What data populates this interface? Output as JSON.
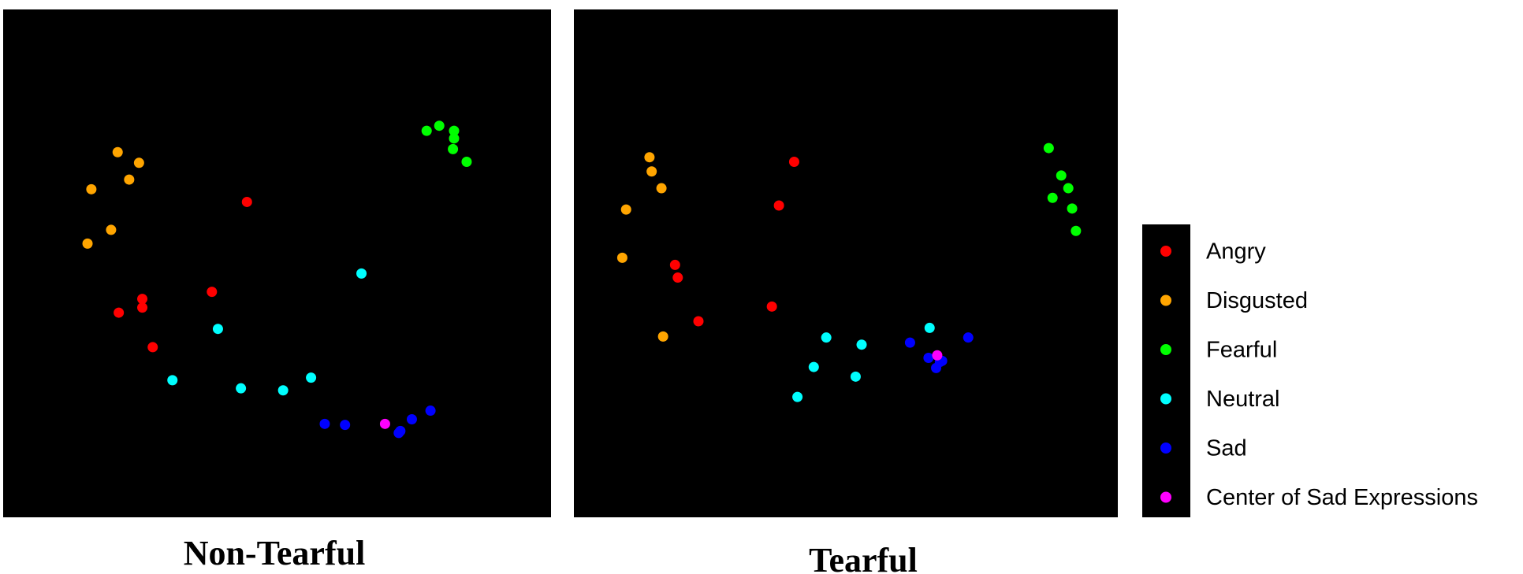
{
  "chart_data": [
    {
      "type": "scatter",
      "title": "Non-Tearful",
      "xlim": [
        0,
        100
      ],
      "ylim": [
        0,
        100
      ],
      "series": [
        {
          "name": "Angry",
          "color": "#ff0000",
          "x": [
            44.5,
            38.1,
            25.4,
            25.4,
            21.1,
            27.3
          ],
          "y": [
            62.1,
            44.4,
            43.0,
            41.3,
            40.3,
            33.5
          ]
        },
        {
          "name": "Disgusted",
          "color": "#ffa500",
          "x": [
            20.9,
            24.8,
            16.1,
            23.0,
            19.7,
            15.4
          ],
          "y": [
            71.9,
            69.8,
            64.6,
            66.5,
            56.6,
            53.9
          ]
        },
        {
          "name": "Fearful",
          "color": "#00ff00",
          "x": [
            77.3,
            79.6,
            82.3,
            82.3,
            82.1,
            84.6
          ],
          "y": [
            76.1,
            77.1,
            76.1,
            74.6,
            72.5,
            70.0
          ]
        },
        {
          "name": "Neutral",
          "color": "#00ffff",
          "x": [
            65.4,
            39.2,
            30.9,
            43.4,
            51.1,
            56.2
          ],
          "y": [
            48.0,
            37.1,
            27.0,
            25.4,
            25.0,
            27.5
          ]
        },
        {
          "name": "Sad",
          "color": "#0000ff",
          "x": [
            58.7,
            62.4,
            72.2,
            72.5,
            74.6,
            78.0
          ],
          "y": [
            18.4,
            18.2,
            16.6,
            17.0,
            19.3,
            21.0
          ]
        },
        {
          "name": "Center of Sad Expressions",
          "color": "#ff00ff",
          "x": [
            69.7
          ],
          "y": [
            18.4
          ]
        }
      ]
    },
    {
      "type": "scatter",
      "title": "Tearful",
      "xlim": [
        0,
        100
      ],
      "ylim": [
        0,
        100
      ],
      "legend": "right",
      "series": [
        {
          "name": "Angry",
          "color": "#ff0000",
          "x": [
            40.5,
            37.7,
            18.6,
            19.1,
            36.4,
            22.9
          ],
          "y": [
            70.0,
            61.4,
            49.7,
            47.2,
            41.5,
            38.6
          ]
        },
        {
          "name": "Disgusted",
          "color": "#ffa500",
          "x": [
            13.9,
            14.3,
            16.1,
            9.6,
            8.9,
            16.4
          ],
          "y": [
            70.9,
            68.1,
            64.8,
            60.6,
            51.1,
            35.6
          ]
        },
        {
          "name": "Fearful",
          "color": "#00ff00",
          "x": [
            87.3,
            89.6,
            90.9,
            88.0,
            91.6,
            92.3
          ],
          "y": [
            72.7,
            67.3,
            64.8,
            62.9,
            60.8,
            56.4
          ]
        },
        {
          "name": "Neutral",
          "color": "#00ffff",
          "x": [
            65.4,
            46.4,
            52.9,
            44.1,
            51.8,
            41.1
          ],
          "y": [
            37.3,
            35.4,
            34.0,
            29.6,
            27.7,
            23.7
          ]
        },
        {
          "name": "Sad",
          "color": "#0000ff",
          "x": [
            61.8,
            72.5,
            65.2,
            67.3,
            66.6,
            67.7
          ],
          "y": [
            34.4,
            35.4,
            31.4,
            30.6,
            29.4,
            30.8
          ]
        },
        {
          "name": "Center of Sad Expressions",
          "color": "#ff00ff",
          "x": [
            66.8
          ],
          "y": [
            31.9
          ]
        }
      ]
    }
  ]
}
